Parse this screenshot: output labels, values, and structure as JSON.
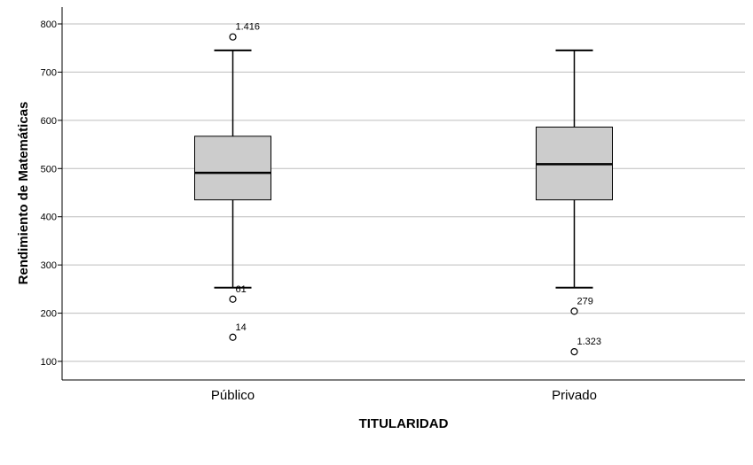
{
  "chart_data": {
    "type": "box",
    "xlabel": "TITULARIDAD",
    "ylabel": "Rendimiento de Matemáticas",
    "ylim": [
      63,
      800
    ],
    "yticks": [
      100,
      200,
      300,
      400,
      500,
      600,
      700,
      800
    ],
    "grid": true,
    "colors": {
      "box_fill": "#cccccc",
      "grid": "#bdbdbd",
      "stroke": "#000000"
    },
    "categories": [
      "Público",
      "Privado"
    ],
    "boxes": [
      {
        "category": "Público",
        "whisker_low": 253,
        "q1": 435,
        "median": 491,
        "q3": 567,
        "whisker_high": 745,
        "outliers": [
          {
            "value": 773,
            "label": "1.416"
          },
          {
            "value": 229,
            "label": "61"
          },
          {
            "value": 150,
            "label": "14"
          }
        ]
      },
      {
        "category": "Privado",
        "whisker_low": 253,
        "q1": 435,
        "median": 509,
        "q3": 586,
        "whisker_high": 745,
        "outliers": [
          {
            "value": 204,
            "label": "279"
          },
          {
            "value": 120,
            "label": "1.323"
          }
        ]
      }
    ]
  }
}
